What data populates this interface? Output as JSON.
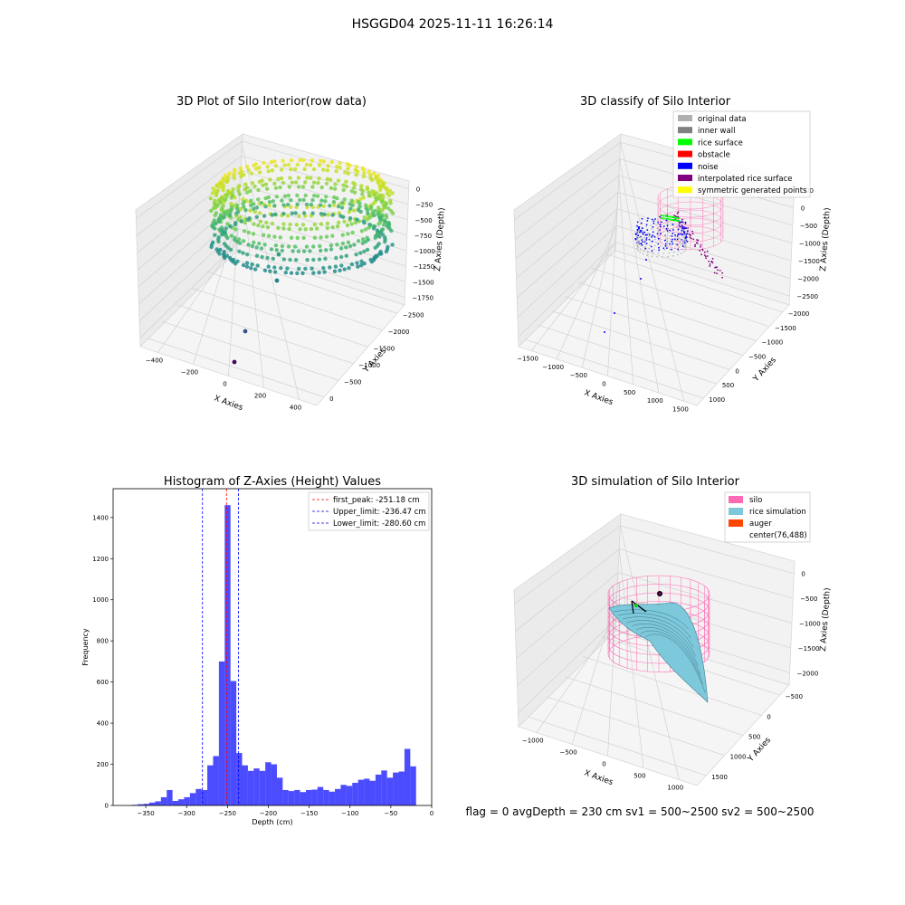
{
  "figure_title": "HSGGD04 2025-11-11 16:26:14",
  "status_line": "flag = 0     avgDepth = 230 cm  sv1 = 500~2500  sv2 = 500~2500",
  "colors": {
    "hist_bar": "#0000ff",
    "peak_line": "#ff0000",
    "limit_line": "#0000ff",
    "pane": "#f2f2f2",
    "silo": "#ff69b4",
    "rice_sim": "#7ec8dc",
    "auger": "#ff4500",
    "classify_legend": [
      "#b0b0b0",
      "#808080",
      "#00ff00",
      "#ff0000",
      "#0000ff",
      "#800080",
      "#ffff00"
    ]
  },
  "chart_data": [
    {
      "type": "scatter",
      "title": "3D Plot of Silo Interior(row data)",
      "xlabel": "X Axies",
      "ylabel": "Y Axies",
      "zlabel": "Z Axies (Depth)",
      "x_ticks": [
        "−400",
        "−200",
        "0",
        "200",
        "400"
      ],
      "y_ticks": [
        "0",
        "−500",
        "−1000",
        "−1500",
        "−2000",
        "−2500"
      ],
      "z_ticks": [
        "0",
        "−250",
        "−500",
        "−750",
        "−1000",
        "−1250",
        "−1500",
        "−1750"
      ],
      "grid": true
    },
    {
      "type": "scatter",
      "title": "3D classify of Silo Interior",
      "xlabel": "X Axies",
      "ylabel": "Y Axies",
      "zlabel": "Z Axies (Depth)",
      "x_ticks": [
        "−1500",
        "−1000",
        "−500",
        "0",
        "500",
        "1000",
        "1500"
      ],
      "y_ticks": [
        "1000",
        "500",
        "0",
        "−500",
        "−1000",
        "−1500",
        "−2000"
      ],
      "z_ticks": [
        "500",
        "0",
        "−500",
        "−1000",
        "−1500",
        "−2000",
        "−2500"
      ],
      "legend": [
        "original data",
        "inner wall",
        "rice surface",
        "obstacle",
        "noise",
        "interpolated rice surface",
        "symmetric generated points"
      ],
      "legend_position": "top-right",
      "grid": true
    },
    {
      "type": "bar",
      "title": "Histogram of Z-Axies (Height) Values",
      "xlabel": "Depth (cm)",
      "ylabel": "Frequency",
      "xlim": [
        -390,
        0
      ],
      "ylim": [
        0,
        1540
      ],
      "x_ticks": [
        -350,
        -300,
        -250,
        -200,
        -150,
        -100,
        -50,
        0
      ],
      "x_tick_labels": [
        "−350",
        "−300",
        "−250",
        "−200",
        "−150",
        "−100",
        "−50",
        "0"
      ],
      "y_ticks": [
        0,
        200,
        400,
        600,
        800,
        1000,
        1200,
        1400
      ],
      "bin_start": -367,
      "bin_width": 7.1,
      "values": [
        3,
        6,
        8,
        14,
        20,
        40,
        75,
        22,
        30,
        40,
        60,
        80,
        75,
        195,
        240,
        700,
        1460,
        605,
        255,
        195,
        168,
        180,
        168,
        210,
        200,
        135,
        75,
        70,
        75,
        65,
        75,
        77,
        90,
        75,
        67,
        80,
        100,
        95,
        110,
        125,
        130,
        120,
        150,
        170,
        135,
        160,
        165,
        275,
        190
      ],
      "vlines": [
        {
          "label": "first_peak: -251.18 cm",
          "x": -251.18,
          "color": "#ff0000"
        },
        {
          "label": "Upper_limit: -236.47 cm",
          "x": -236.47,
          "color": "#0000ff"
        },
        {
          "label": "Lower_limit: -280.60 cm",
          "x": -280.6,
          "color": "#0000ff"
        }
      ],
      "legend_position": "top-right",
      "grid": false
    },
    {
      "type": "surface",
      "title": "3D simulation of Silo Interior",
      "xlabel": "X Axies",
      "ylabel": "Y Axies",
      "zlabel": "Z Axies (Depth)",
      "x_ticks": [
        "−1000",
        "−500",
        "0",
        "500",
        "1000"
      ],
      "y_ticks": [
        "1500",
        "1000",
        "500",
        "0",
        "−500"
      ],
      "z_ticks": [
        "0",
        "−500",
        "−1000",
        "−1500",
        "−2000"
      ],
      "legend": [
        "silo",
        "rice simulation",
        "auger",
        "center(76,488)"
      ],
      "legend_position": "top-right",
      "grid": true
    }
  ]
}
